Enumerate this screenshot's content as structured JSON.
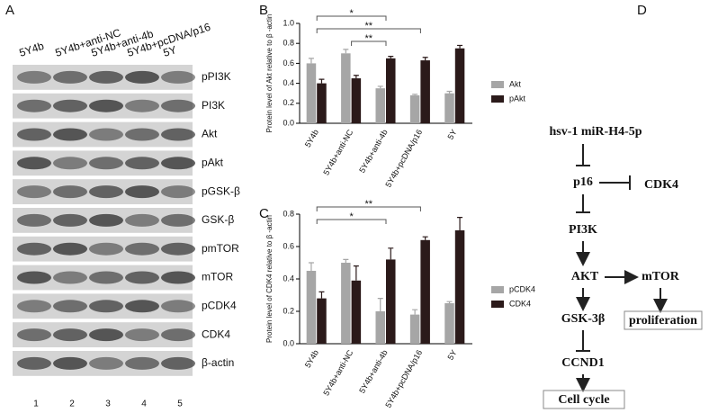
{
  "panel_a": {
    "label": "A",
    "lanes": [
      "5Y4b",
      "5Y4b+anti-NC",
      "5Y4b+anti-4b",
      "5Y4b+pcDNA/p16",
      "5Y"
    ],
    "bands": [
      "pPI3K",
      "PI3K",
      "Akt",
      "pAkt",
      "pGSK-β",
      "GSK-β",
      "pmTOR",
      "mTOR",
      "pCDK4",
      "CDK4",
      "β-actin"
    ],
    "lane_numbers": [
      "1",
      "2",
      "3",
      "4",
      "5"
    ]
  },
  "chart_data": [
    {
      "type": "bar",
      "label": "B",
      "y_label": "Protein level of Akt relative to β -actin",
      "categories": [
        "5Y4b",
        "5Y4b+anti-NC",
        "5Y4b+anti-4b",
        "5Y4b+pcDNA/p16",
        "5Y"
      ],
      "series": [
        {
          "name": "Akt",
          "color": "#a6a6a6",
          "values": [
            0.6,
            0.7,
            0.35,
            0.28,
            0.3
          ],
          "errors": [
            0.05,
            0.04,
            0.02,
            0.01,
            0.02
          ]
        },
        {
          "name": "pAkt",
          "color": "#2b1a1a",
          "values": [
            0.4,
            0.45,
            0.65,
            0.63,
            0.75
          ],
          "errors": [
            0.04,
            0.03,
            0.02,
            0.03,
            0.03
          ]
        }
      ],
      "ylim": [
        0,
        1.0
      ],
      "yticks": [
        {
          "value": 0,
          "label": "0.0"
        },
        0.2,
        0.4,
        0.6,
        0.8,
        {
          "value": 1.0,
          "label": "1.0"
        }
      ],
      "significance": [
        {
          "text": "*",
          "between": [
            "5Y4b",
            "5Y4b+anti-4b"
          ]
        },
        {
          "text": "**",
          "between": [
            "5Y4b",
            "5Y4b+pcDNA/p16"
          ]
        },
        {
          "text": "**",
          "between": [
            "5Y4b+anti-NC",
            "5Y4b+anti-4b"
          ]
        }
      ],
      "legend": "right"
    },
    {
      "type": "bar",
      "label": "C",
      "y_label": "Protein level of  CDK4 relative to β -actin",
      "categories": [
        "5Y4b",
        "5Y4b+anti-NC",
        "5Y4b+anti-4b",
        "5Y4b+pcDNA/p16",
        "5Y"
      ],
      "series": [
        {
          "name": "pCDK4",
          "color": "#a6a6a6",
          "values": [
            0.45,
            0.5,
            0.2,
            0.18,
            0.25
          ],
          "errors": [
            0.05,
            0.02,
            0.08,
            0.03,
            0.01
          ]
        },
        {
          "name": "CDK4",
          "color": "#2b1a1a",
          "values": [
            0.28,
            0.39,
            0.52,
            0.64,
            0.7
          ],
          "errors": [
            0.04,
            0.09,
            0.07,
            0.02,
            0.08
          ]
        }
      ],
      "ylim": [
        0,
        0.8
      ],
      "yticks": [
        {
          "value": 0,
          "label": "0.0"
        },
        0.2,
        0.4,
        0.6,
        0.8
      ],
      "significance": [
        {
          "text": "**",
          "between": [
            "5Y4b",
            "5Y4b+pcDNA/p16"
          ]
        },
        {
          "text": "*",
          "between": [
            "5Y4b",
            "5Y4b+anti-4b"
          ]
        }
      ],
      "legend": "right"
    }
  ],
  "panel_d": {
    "label": "D",
    "nodes": [
      "hsv-1 miR-H4-5p",
      "p16",
      "CDK4",
      "PI3K",
      "AKT",
      "mTOR",
      "GSK-3β",
      "proliferation",
      "CCND1",
      "Cell cycle"
    ]
  }
}
